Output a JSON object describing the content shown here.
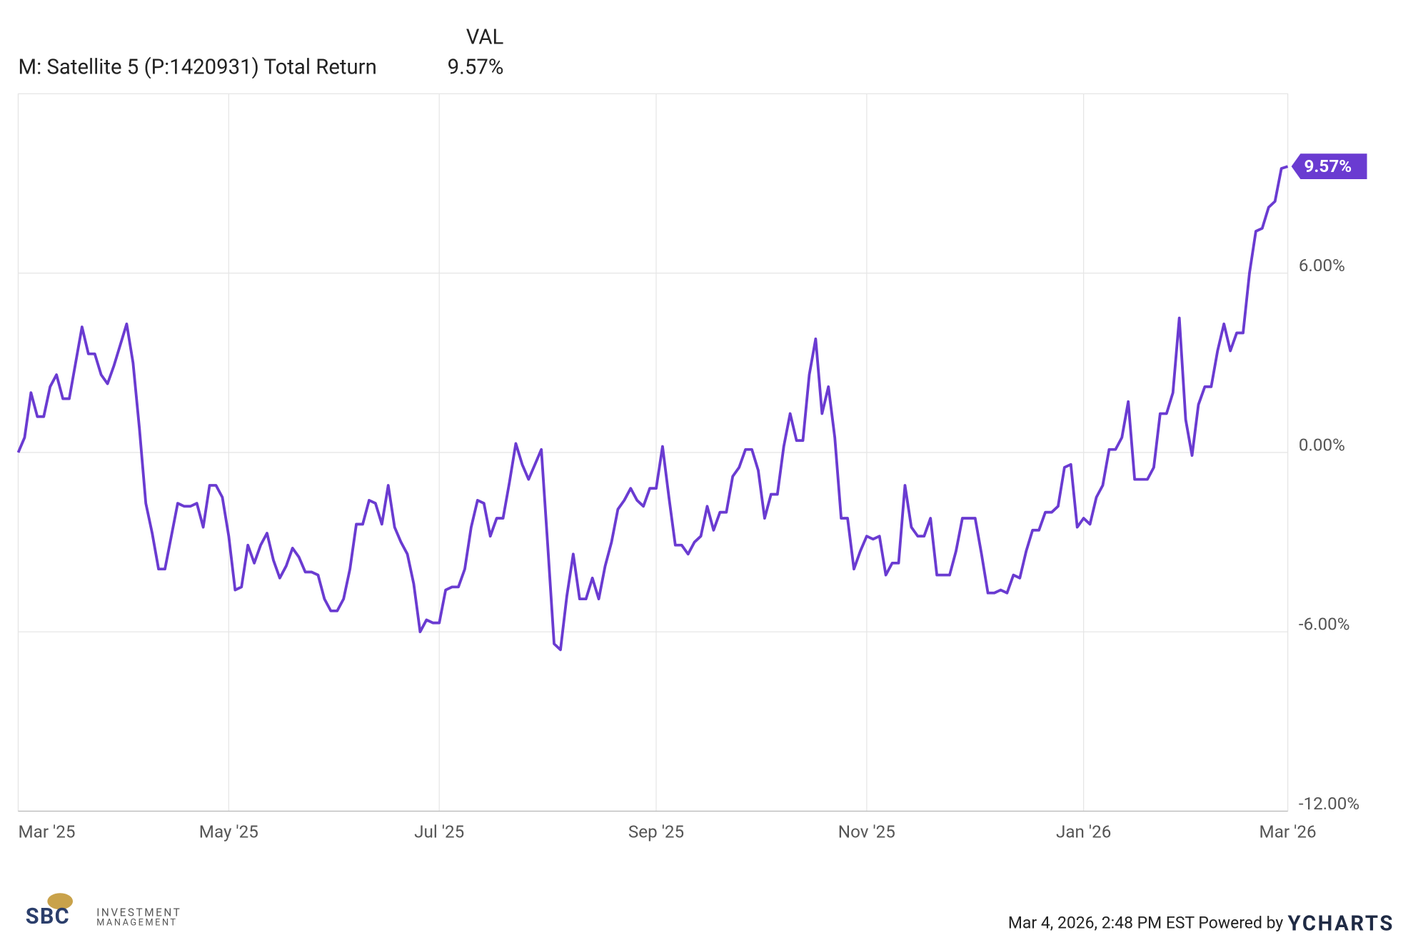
{
  "chart_data": {
    "type": "line",
    "legend_header": "VAL",
    "series": [
      {
        "name": "M: Satellite 5 (P:1420931) Total Return",
        "color": "#6a3bd1",
        "values": [
          0,
          0.5,
          2.0,
          1.2,
          1.2,
          2.2,
          2.6,
          1.8,
          1.8,
          3.0,
          4.2,
          3.3,
          3.3,
          2.6,
          2.3,
          2.9,
          3.6,
          4.3,
          3.0,
          0.8,
          -1.7,
          -2.7,
          -3.9,
          -3.9,
          -2.8,
          -1.7,
          -1.8,
          -1.8,
          -1.7,
          -2.5,
          -1.1,
          -1.1,
          -1.5,
          -2.8,
          -4.6,
          -4.5,
          -3.1,
          -3.7,
          -3.1,
          -2.7,
          -3.6,
          -4.2,
          -3.8,
          -3.2,
          -3.5,
          -4.0,
          -4.0,
          -4.1,
          -4.9,
          -5.3,
          -5.3,
          -4.9,
          -3.9,
          -2.4,
          -2.4,
          -1.6,
          -1.7,
          -2.4,
          -1.1,
          -2.5,
          -3.0,
          -3.4,
          -4.4,
          -6.0,
          -5.6,
          -5.7,
          -5.7,
          -4.6,
          -4.5,
          -4.5,
          -3.9,
          -2.5,
          -1.6,
          -1.7,
          -2.8,
          -2.2,
          -2.2,
          -1.0,
          0.3,
          -0.4,
          -0.9,
          -0.4,
          0.1,
          -3.1,
          -6.4,
          -6.6,
          -4.8,
          -3.4,
          -4.9,
          -4.9,
          -4.2,
          -4.9,
          -3.8,
          -3.0,
          -1.9,
          -1.6,
          -1.2,
          -1.6,
          -1.8,
          -1.2,
          -1.2,
          0.2,
          -1.5,
          -3.1,
          -3.1,
          -3.4,
          -3.0,
          -2.8,
          -1.8,
          -2.6,
          -2.0,
          -2.0,
          -0.8,
          -0.5,
          0.1,
          0.1,
          -0.6,
          -2.2,
          -1.4,
          -1.4,
          0.2,
          1.3,
          0.4,
          0.4,
          2.6,
          3.8,
          1.3,
          2.2,
          0.5,
          -2.2,
          -2.2,
          -3.9,
          -3.3,
          -2.8,
          -2.9,
          -2.8,
          -4.1,
          -3.7,
          -3.7,
          -1.1,
          -2.5,
          -2.8,
          -2.8,
          -2.2,
          -4.1,
          -4.1,
          -4.1,
          -3.3,
          -2.2,
          -2.2,
          -2.2,
          -3.4,
          -4.7,
          -4.7,
          -4.6,
          -4.7,
          -4.1,
          -4.2,
          -3.3,
          -2.6,
          -2.6,
          -2.0,
          -2.0,
          -1.8,
          -0.5,
          -0.4,
          -2.5,
          -2.2,
          -2.4,
          -1.5,
          -1.1,
          0.1,
          0.1,
          0.5,
          1.7,
          -0.9,
          -0.9,
          -0.9,
          -0.5,
          1.3,
          1.3,
          2.0,
          4.5,
          1.1,
          -0.1,
          1.6,
          2.2,
          2.2,
          3.4,
          4.3,
          3.4,
          4.0,
          4.0,
          6.0,
          7.4,
          7.5,
          8.2,
          8.4,
          9.5,
          9.57
        ],
        "value_labels": [
          null,
          null,
          null,
          null,
          null,
          null,
          null,
          null,
          null,
          null,
          null,
          null,
          null,
          null,
          null,
          null,
          null,
          null,
          null,
          null,
          null,
          null,
          null,
          null,
          null,
          null,
          null,
          null,
          null,
          null,
          null,
          null,
          null,
          null,
          null,
          null,
          null,
          null,
          null,
          null,
          null,
          null,
          null,
          null,
          null,
          null,
          null,
          null,
          null,
          null,
          null,
          null,
          null,
          null,
          null,
          null,
          null,
          null,
          null,
          null,
          null,
          null,
          null,
          null,
          null,
          null,
          null,
          null,
          null,
          null,
          null,
          null,
          null,
          null,
          null,
          null,
          null,
          null,
          null,
          null,
          null,
          null,
          null,
          null,
          null,
          null,
          null,
          null,
          null,
          null,
          null,
          null,
          null,
          null,
          null,
          null,
          null,
          null,
          null,
          null,
          null,
          null,
          null,
          null,
          null,
          null,
          null,
          null,
          null,
          null,
          null,
          null,
          null,
          null,
          null,
          null,
          null,
          null,
          null,
          null,
          null,
          null,
          null,
          null,
          null,
          null,
          null,
          null,
          null,
          null,
          null,
          null,
          null,
          null,
          null,
          null,
          null,
          null,
          null,
          null,
          null,
          null,
          null,
          null,
          null,
          null,
          null,
          null,
          null,
          null,
          null,
          null,
          null,
          null,
          null,
          null,
          null,
          null,
          null,
          null,
          null,
          null,
          null,
          null,
          null,
          null,
          null,
          null,
          null,
          null,
          null,
          null,
          null,
          null,
          null,
          null,
          null,
          null,
          null,
          null,
          null,
          null,
          null,
          null,
          null,
          null,
          null,
          null,
          null,
          null,
          null,
          null,
          null,
          null,
          null,
          null,
          null,
          null,
          null,
          "9.57%"
        ]
      }
    ],
    "xlim": [
      0,
      199
    ],
    "xticks": [
      {
        "value": 0,
        "label": "Mar '25"
      },
      {
        "value": 33,
        "label": "May '25"
      },
      {
        "value": 66,
        "label": "Jul '25"
      },
      {
        "value": 100,
        "label": "Sep '25"
      },
      {
        "value": 133,
        "label": "Nov '25"
      },
      {
        "value": 167,
        "label": "Jan '26"
      },
      {
        "value": 199,
        "label": "Mar '26"
      }
    ],
    "ylim": [
      -12,
      12
    ],
    "yticks": [
      {
        "value": 6,
        "label": "6.00%"
      },
      {
        "value": 0,
        "label": "0.00%"
      },
      {
        "value": -6,
        "label": "-6.00%"
      },
      {
        "value": -12,
        "label": "-12.00%"
      }
    ],
    "grid": true
  },
  "footer": {
    "timestamp": "Mar 4, 2026, 2:48 PM EST Powered by",
    "brand": "YCHARTS",
    "logo_main": "SBC",
    "logo_line1": "INVESTMENT",
    "logo_line2": "MANAGEMENT"
  }
}
